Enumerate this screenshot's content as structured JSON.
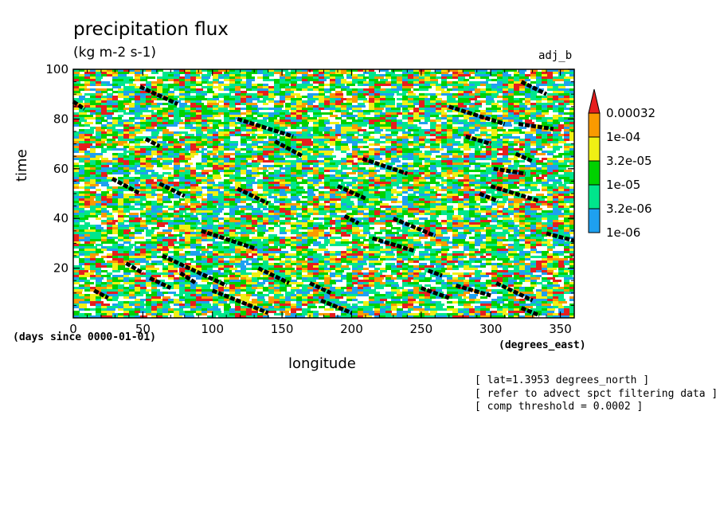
{
  "chart_data": {
    "type": "heatmap",
    "title": "precipitation flux",
    "units": "(kg m-2 s-1)",
    "tag": "adj_b",
    "xlabel": "longitude",
    "ylabel": "time",
    "x_units": "(degrees_east)",
    "y_units": "(days since 0000-01-01)",
    "xlim": [
      0,
      360
    ],
    "ylim": [
      0,
      100
    ],
    "x_ticks": [
      0,
      50,
      100,
      150,
      200,
      250,
      300,
      350
    ],
    "y_ticks": [
      20,
      40,
      60,
      80,
      100
    ],
    "colorbar": {
      "levels": [
        "1e-06",
        "3.2e-06",
        "1e-05",
        "3.2e-05",
        "1e-04",
        "0.00032"
      ],
      "colors": [
        "#1ea0f0",
        "#00e68c",
        "#00d200",
        "#f0f014",
        "#fa9a00",
        "#e61e1e"
      ]
    },
    "threshold_tracks": [
      {
        "x": [
          0,
          8
        ],
        "y": [
          87,
          84
        ]
      },
      {
        "x": [
          15,
          25
        ],
        "y": [
          11,
          8
        ]
      },
      {
        "x": [
          28,
          48
        ],
        "y": [
          56,
          50
        ]
      },
      {
        "x": [
          38,
          50
        ],
        "y": [
          22,
          18
        ]
      },
      {
        "x": [
          48,
          75
        ],
        "y": [
          93,
          86
        ]
      },
      {
        "x": [
          52,
          62
        ],
        "y": [
          72,
          69
        ]
      },
      {
        "x": [
          55,
          70
        ],
        "y": [
          16,
          12
        ]
      },
      {
        "x": [
          62,
          80
        ],
        "y": [
          54,
          49
        ]
      },
      {
        "x": [
          64,
          110
        ],
        "y": [
          25,
          13
        ]
      },
      {
        "x": [
          77,
          88
        ],
        "y": [
          18,
          14
        ]
      },
      {
        "x": [
          92,
          130
        ],
        "y": [
          35,
          28
        ]
      },
      {
        "x": [
          100,
          140
        ],
        "y": [
          11,
          2
        ]
      },
      {
        "x": [
          118,
          140
        ],
        "y": [
          52,
          46
        ]
      },
      {
        "x": [
          118,
          158
        ],
        "y": [
          80,
          73
        ]
      },
      {
        "x": [
          133,
          155
        ],
        "y": [
          20,
          14
        ]
      },
      {
        "x": [
          145,
          165
        ],
        "y": [
          71,
          65
        ]
      },
      {
        "x": [
          170,
          185
        ],
        "y": [
          14,
          10
        ]
      },
      {
        "x": [
          178,
          200
        ],
        "y": [
          7,
          2
        ]
      },
      {
        "x": [
          190,
          210
        ],
        "y": [
          53,
          48
        ]
      },
      {
        "x": [
          195,
          205
        ],
        "y": [
          41,
          38
        ]
      },
      {
        "x": [
          208,
          240
        ],
        "y": [
          64,
          58
        ]
      },
      {
        "x": [
          215,
          245
        ],
        "y": [
          32,
          27
        ]
      },
      {
        "x": [
          230,
          260
        ],
        "y": [
          40,
          33
        ]
      },
      {
        "x": [
          250,
          270
        ],
        "y": [
          12,
          8
        ]
      },
      {
        "x": [
          255,
          265
        ],
        "y": [
          19,
          17
        ]
      },
      {
        "x": [
          270,
          310
        ],
        "y": [
          85,
          78
        ]
      },
      {
        "x": [
          275,
          300
        ],
        "y": [
          13,
          9
        ]
      },
      {
        "x": [
          282,
          300
        ],
        "y": [
          73,
          70
        ]
      },
      {
        "x": [
          292,
          305
        ],
        "y": [
          50,
          47
        ]
      },
      {
        "x": [
          300,
          335
        ],
        "y": [
          53,
          47
        ]
      },
      {
        "x": [
          302,
          325
        ],
        "y": [
          60,
          58
        ]
      },
      {
        "x": [
          304,
          330
        ],
        "y": [
          14,
          7
        ]
      },
      {
        "x": [
          318,
          330
        ],
        "y": [
          66,
          63
        ]
      },
      {
        "x": [
          320,
          345
        ],
        "y": [
          78,
          76
        ]
      },
      {
        "x": [
          322,
          335
        ],
        "y": [
          4,
          1
        ]
      },
      {
        "x": [
          322,
          340
        ],
        "y": [
          95,
          90
        ]
      },
      {
        "x": [
          340,
          360
        ],
        "y": [
          34,
          31
        ]
      }
    ]
  },
  "notes": [
    "[ lat=1.3953 degrees_north ]",
    "[ refer to advect spct filtering data ]",
    "[ comp threshold = 0.0002 ]"
  ]
}
